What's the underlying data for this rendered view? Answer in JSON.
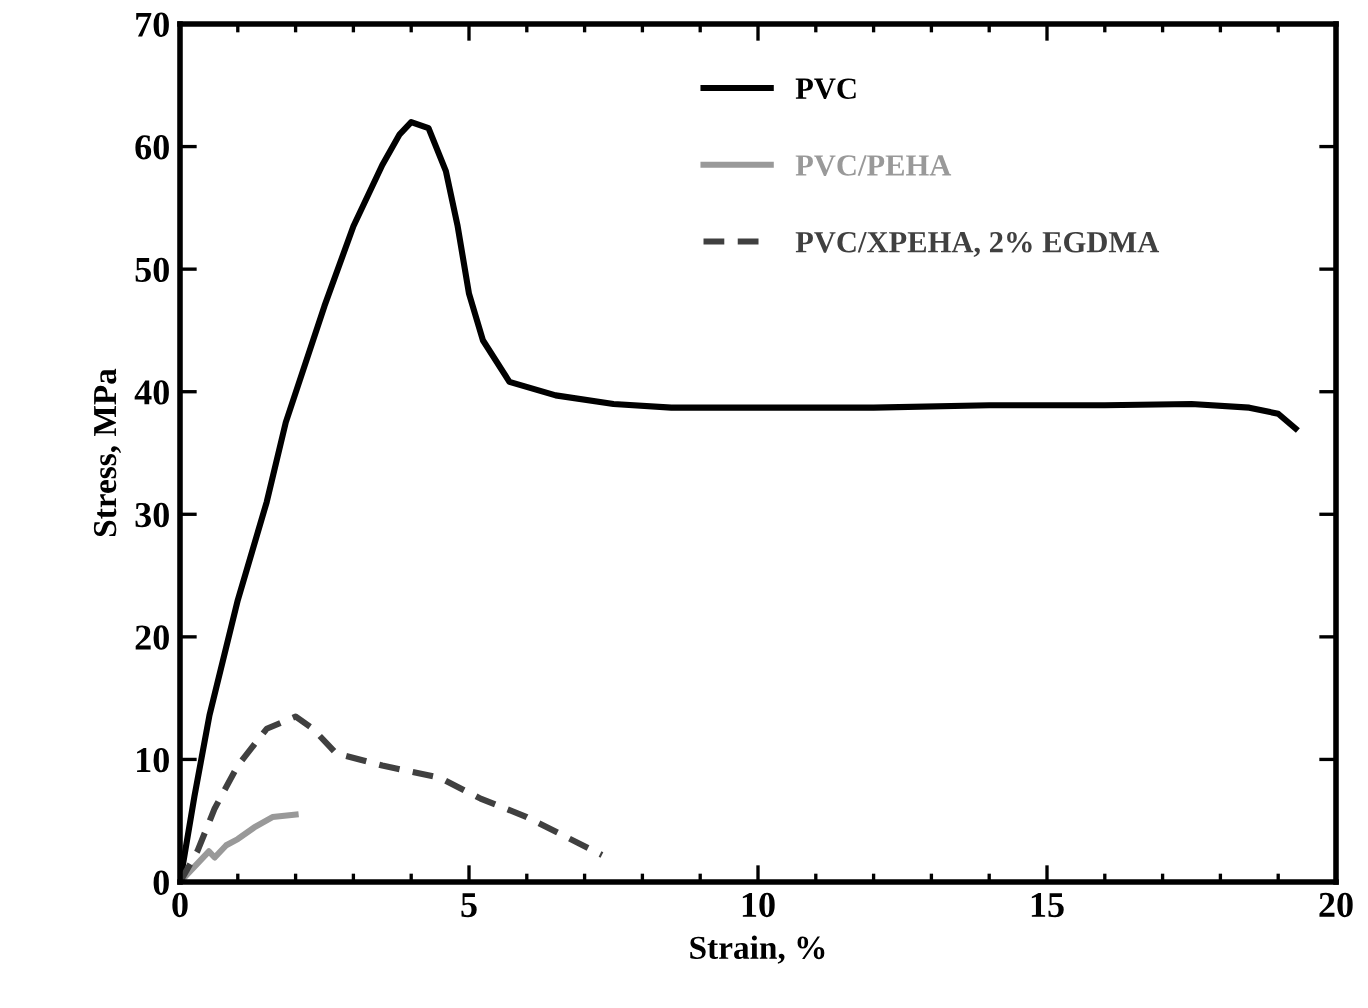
{
  "chart_data": {
    "type": "line",
    "xlabel": "Strain, %",
    "ylabel": "Stress, MPa",
    "xlim": [
      0,
      20
    ],
    "ylim": [
      0,
      70
    ],
    "xticks": [
      0,
      5,
      10,
      15,
      20
    ],
    "yticks": [
      0,
      10,
      20,
      30,
      40,
      50,
      60,
      70
    ],
    "legend": "top",
    "grid": false,
    "series": [
      {
        "name": "PVC",
        "color": "#000000",
        "line_style": "solid",
        "x": [
          0,
          0.25,
          0.51,
          1.0,
          1.5,
          1.83,
          2.5,
          3.0,
          3.5,
          3.8,
          4.0,
          4.3,
          4.6,
          4.8,
          5.0,
          5.24,
          5.7,
          6.5,
          7.5,
          8.5,
          10,
          12,
          14,
          16,
          17.5,
          18.5,
          19.0,
          19.3
        ],
        "values": [
          0,
          7,
          13.6,
          23,
          31,
          37.5,
          47,
          53.5,
          58.5,
          61,
          62,
          61.5,
          58,
          53.6,
          48,
          44.2,
          40.8,
          39.7,
          39.0,
          38.7,
          38.7,
          38.7,
          38.9,
          38.9,
          39.0,
          38.7,
          38.2,
          37
        ]
      },
      {
        "name": "PVC/PEHA",
        "color": "#999999",
        "line_style": "solid",
        "x": [
          0,
          0.3,
          0.5,
          0.6,
          0.8,
          1.0,
          1.3,
          1.6,
          2.0
        ],
        "values": [
          0,
          1.5,
          2.5,
          2.0,
          3.0,
          3.5,
          4.5,
          5.3,
          5.5
        ]
      },
      {
        "name": "PVC/XPEHA, 2% EGDMA",
        "color": "#404040",
        "line_style": "dashed",
        "x": [
          0,
          0.3,
          0.6,
          1.0,
          1.5,
          2.0,
          2.3,
          2.7,
          3.5,
          4.5,
          5.2,
          6.0,
          7.3
        ],
        "values": [
          0,
          2.5,
          6,
          9.5,
          12.5,
          13.5,
          12.5,
          10.5,
          9.5,
          8.5,
          6.8,
          5.3,
          2.2
        ]
      }
    ]
  }
}
